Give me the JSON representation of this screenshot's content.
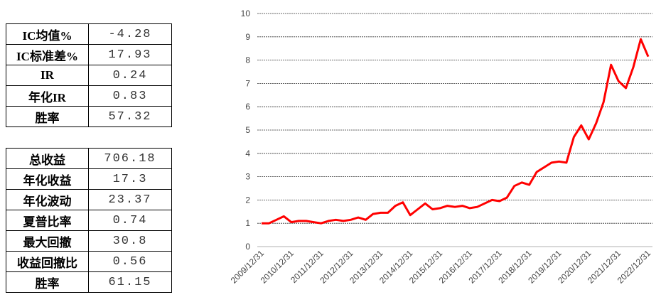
{
  "tables": [
    {
      "rows": [
        [
          "IC均值%",
          "-4.28"
        ],
        [
          "IC标准差%",
          "17.93"
        ],
        [
          "IR",
          "0.24"
        ],
        [
          "年化IR",
          "0.83"
        ],
        [
          "胜率",
          "57.32"
        ]
      ]
    },
    {
      "rows": [
        [
          "总收益",
          "706.18"
        ],
        [
          "年化收益",
          "17.3"
        ],
        [
          "年化波动",
          "23.37"
        ],
        [
          "夏普比率",
          "0.74"
        ],
        [
          "最大回撤",
          "30.8"
        ],
        [
          "收益回撤比",
          "0.56"
        ],
        [
          "胜率",
          "61.15"
        ]
      ]
    }
  ],
  "chart_data": {
    "type": "line",
    "categories": [
      "2009/12/31",
      null,
      null,
      null,
      "2010/12/31",
      null,
      null,
      null,
      "2011/12/31",
      null,
      null,
      null,
      "2012/12/31",
      null,
      null,
      null,
      "2013/12/31",
      null,
      null,
      null,
      "2014/12/31",
      null,
      null,
      null,
      "2015/12/31",
      null,
      null,
      null,
      "2016/12/31",
      null,
      null,
      null,
      "2017/12/31",
      null,
      null,
      null,
      "2018/12/31",
      null,
      null,
      null,
      "2019/12/31",
      null,
      null,
      null,
      "2020/12/31",
      null,
      null,
      null,
      "2021/12/31",
      null,
      null,
      null,
      "2022/12/31"
    ],
    "values": [
      1.0,
      1.0,
      1.15,
      1.3,
      1.05,
      1.1,
      1.1,
      1.05,
      1.0,
      1.1,
      1.15,
      1.1,
      1.15,
      1.25,
      1.15,
      1.4,
      1.45,
      1.45,
      1.75,
      1.9,
      1.35,
      1.6,
      1.85,
      1.6,
      1.65,
      1.75,
      1.7,
      1.75,
      1.65,
      1.7,
      1.85,
      2.0,
      1.95,
      2.1,
      2.6,
      2.75,
      2.65,
      3.2,
      3.4,
      3.6,
      3.65,
      3.6,
      4.7,
      5.2,
      4.6,
      5.3,
      6.2,
      7.8,
      7.1,
      6.8,
      7.7,
      8.9,
      8.15
    ],
    "color": "#ff0000",
    "ylim": [
      0,
      10
    ],
    "yticks": [
      0,
      1,
      2,
      3,
      4,
      5,
      6,
      7,
      8,
      9,
      10
    ],
    "grid": true
  }
}
